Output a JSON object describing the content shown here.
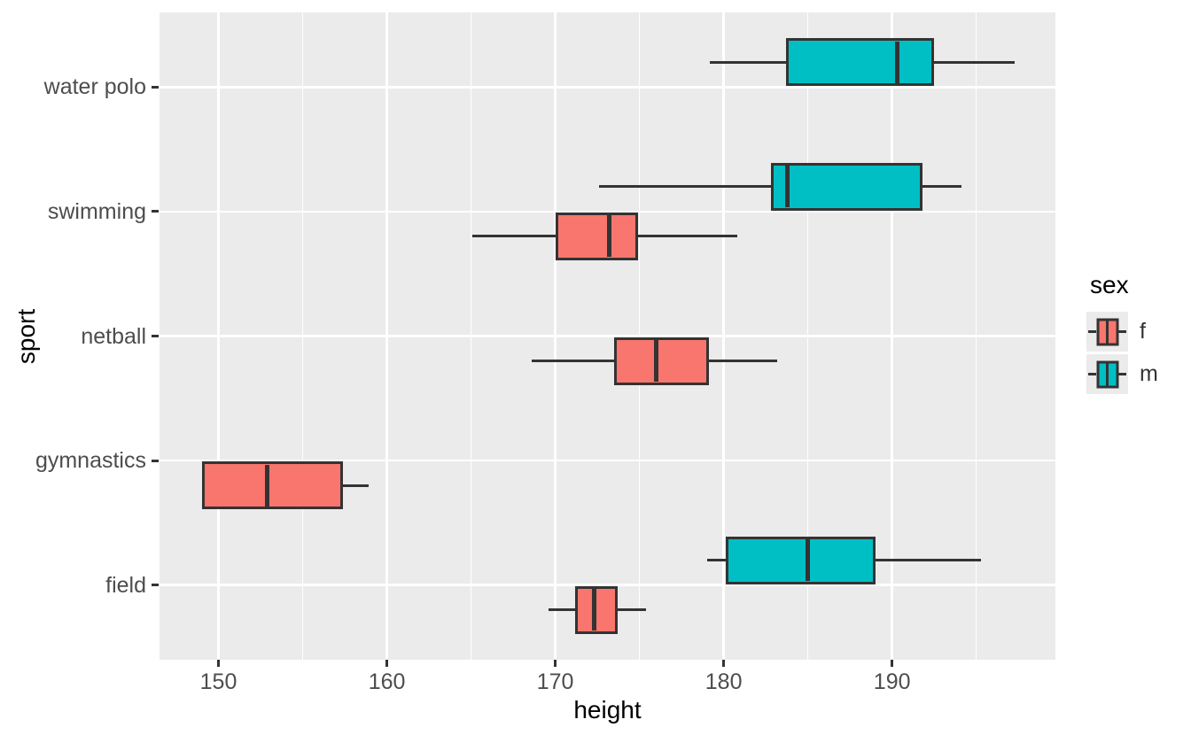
{
  "chart_data": {
    "type": "boxplot",
    "orientation": "horizontal",
    "xlabel": "height",
    "ylabel": "sport",
    "categories": [
      "water polo",
      "swimming",
      "netball",
      "gymnastics",
      "field"
    ],
    "x_ticks": [
      150,
      160,
      170,
      180,
      190
    ],
    "x_minor_ticks": [
      155,
      165,
      175,
      185,
      195
    ],
    "xlim": [
      146.5,
      199.7
    ],
    "grid": true,
    "legend": {
      "title": "sex",
      "position": "right",
      "entries": [
        {
          "label": "f",
          "color": "#F8766D"
        },
        {
          "label": "m",
          "color": "#00BFC4"
        }
      ]
    },
    "style": {
      "panel_background": "#EBEBEB",
      "grid_color": "#FFFFFF",
      "box_outline": "#333333",
      "axis_text_color": "#4D4D4D"
    },
    "boxes": [
      {
        "sport": "water polo",
        "sex": "m",
        "min": 179.2,
        "q1": 183.7,
        "median": 190.3,
        "q3": 192.5,
        "max": 197.3
      },
      {
        "sport": "swimming",
        "sex": "m",
        "min": 172.6,
        "q1": 182.8,
        "median": 183.8,
        "q3": 191.8,
        "max": 194.1
      },
      {
        "sport": "swimming",
        "sex": "f",
        "min": 165.1,
        "q1": 170.0,
        "median": 173.2,
        "q3": 174.9,
        "max": 180.8
      },
      {
        "sport": "netball",
        "sex": "f",
        "min": 168.6,
        "q1": 173.5,
        "median": 176.0,
        "q3": 179.1,
        "max": 183.2
      },
      {
        "sport": "gymnastics",
        "sex": "f",
        "min": 149.0,
        "q1": 149.0,
        "median": 152.9,
        "q3": 157.4,
        "max": 158.9
      },
      {
        "sport": "field",
        "sex": "m",
        "min": 179.0,
        "q1": 180.1,
        "median": 185.0,
        "q3": 189.0,
        "max": 195.3
      },
      {
        "sport": "field",
        "sex": "f",
        "min": 169.6,
        "q1": 171.2,
        "median": 172.3,
        "q3": 173.7,
        "max": 175.4
      }
    ]
  }
}
